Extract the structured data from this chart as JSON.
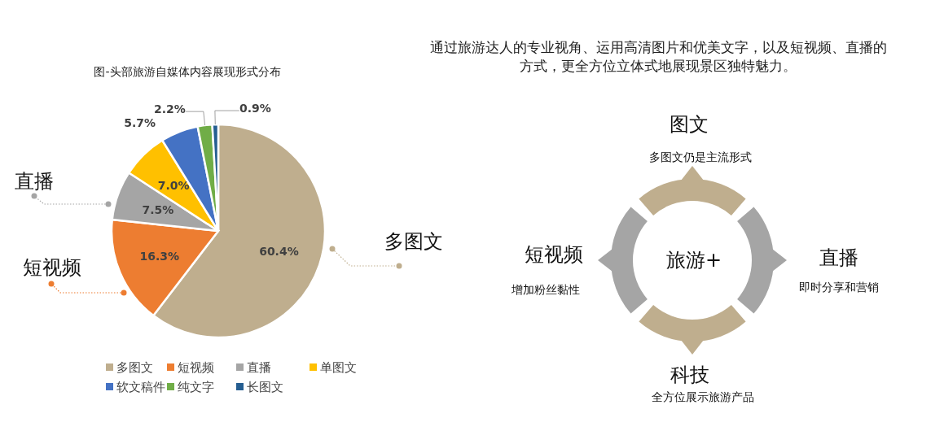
{
  "chart_data": [
    {
      "type": "pie",
      "title": "图-头部旅游自媒体内容展现形式分布",
      "categories": [
        "多图文",
        "短视频",
        "直播",
        "单图文",
        "软文稿件",
        "纯文字",
        "长图文"
      ],
      "values": [
        60.4,
        16.3,
        7.5,
        7.0,
        5.7,
        2.2,
        0.9
      ],
      "colors": [
        "#bfae8e",
        "#ed7d31",
        "#a5a5a5",
        "#ffc000",
        "#4472c4",
        "#70ad47",
        "#255e91"
      ],
      "value_labels": [
        "60.4%",
        "16.3%",
        "7.5%",
        "7.0%",
        "5.7%",
        "2.2%",
        "0.9%"
      ],
      "legend": "bottom",
      "annotations": [
        "多图文",
        "短视频",
        "直播"
      ]
    },
    {
      "type": "other",
      "title": "通过旅游达人的专业视角、运用高清图片和优美文字，以及短视频、直播的方式，更全方位立体式地展现景区独特魅力。",
      "annotations": [
        "旅游+",
        "图文",
        "多图文仍是主流形式",
        "直播",
        "即时分享和营销",
        "科技",
        "全方位展示旅游产品",
        "短视频",
        "增加粉丝黏性"
      ]
    }
  ]
}
